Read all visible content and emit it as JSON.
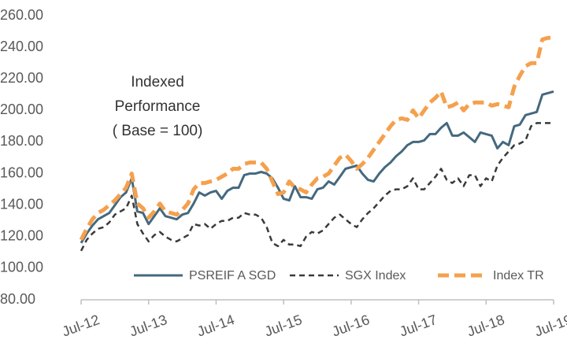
{
  "chart_data": {
    "type": "line",
    "annotation": [
      "Indexed",
      "Performance",
      "( Base = 100)"
    ],
    "categories": [
      "Jul-12",
      null,
      null,
      null,
      null,
      null,
      null,
      null,
      null,
      null,
      null,
      null,
      "Jul-13",
      null,
      null,
      null,
      null,
      null,
      null,
      null,
      null,
      null,
      null,
      null,
      "Jul-14",
      null,
      null,
      null,
      null,
      null,
      null,
      null,
      null,
      null,
      null,
      null,
      "Jul-15",
      null,
      null,
      null,
      null,
      null,
      null,
      null,
      null,
      null,
      null,
      null,
      "Jul-16",
      null,
      null,
      null,
      null,
      null,
      null,
      null,
      null,
      null,
      null,
      null,
      "Jul-17",
      null,
      null,
      null,
      null,
      null,
      null,
      null,
      null,
      null,
      null,
      null,
      "Jul-18",
      null,
      null,
      null,
      null,
      null,
      null,
      null,
      null,
      null,
      null,
      null,
      "Jul-19"
    ],
    "series": [
      {
        "name": "PSREIF A SGD",
        "color": "#44697f",
        "dash": "solid",
        "values": [
          116,
          122,
          127,
          131,
          133,
          135,
          140,
          145,
          148,
          157,
          136,
          135,
          128,
          133,
          138,
          133,
          132,
          131,
          134,
          135,
          141,
          148,
          146,
          148,
          149,
          144,
          149,
          151,
          151,
          159,
          160,
          160,
          161,
          160,
          157,
          151,
          144,
          143,
          152,
          145,
          145,
          144,
          150,
          151,
          155,
          153,
          158,
          163,
          164,
          165,
          160,
          156,
          155,
          160,
          164,
          167,
          171,
          174,
          178,
          180,
          180,
          181,
          185,
          185,
          189,
          192,
          184,
          184,
          186,
          183,
          180,
          186,
          185,
          184,
          176,
          180,
          178,
          190,
          191,
          197,
          198,
          199,
          210,
          211,
          212
        ]
      },
      {
        "name": "SGX Index",
        "color": "#3a3a3a",
        "dash": "dashed",
        "values": [
          111,
          118,
          122,
          125,
          126,
          129,
          134,
          136,
          138,
          146,
          128,
          122,
          117,
          121,
          123,
          120,
          118,
          117,
          119,
          121,
          128,
          127,
          128,
          125,
          128,
          130,
          130,
          132,
          132,
          135,
          134,
          134,
          132,
          126,
          116,
          114,
          118,
          115,
          115,
          114,
          120,
          123,
          122,
          124,
          128,
          132,
          134,
          131,
          128,
          126,
          131,
          135,
          138,
          142,
          146,
          149,
          150,
          150,
          152,
          157,
          150,
          150,
          154,
          158,
          163,
          156,
          154,
          157,
          152,
          159,
          159,
          152,
          157,
          155,
          165,
          170,
          174,
          178,
          179,
          181,
          190,
          192,
          192,
          192,
          192
        ]
      },
      {
        "name": "Index TR",
        "color": "#f5a04d",
        "dash": "dashed",
        "values": [
          118,
          125,
          131,
          135,
          137,
          140,
          143,
          147,
          151,
          160,
          141,
          138,
          132,
          136,
          141,
          136,
          135,
          134,
          137,
          141,
          150,
          154,
          154,
          155,
          156,
          158,
          160,
          163,
          163,
          166,
          167,
          167,
          167,
          163,
          155,
          147,
          148,
          155,
          151,
          150,
          148,
          153,
          157,
          158,
          160,
          165,
          170,
          172,
          168,
          163,
          166,
          170,
          175,
          180,
          185,
          190,
          194,
          195,
          194,
          200,
          195,
          200,
          205,
          208,
          212,
          202,
          203,
          205,
          200,
          204,
          205,
          205,
          205,
          203,
          204,
          203,
          202,
          215,
          222,
          228,
          230,
          230,
          245,
          246,
          246
        ]
      }
    ],
    "ylim": [
      80,
      260
    ],
    "yticks": [
      {
        "value": 80,
        "label": "80.00"
      },
      {
        "value": 100,
        "label": "100.00"
      },
      {
        "value": 120,
        "label": "120.00"
      },
      {
        "value": 140,
        "label": "140.00"
      },
      {
        "value": 160,
        "label": "160.00"
      },
      {
        "value": 180,
        "label": "180.00"
      },
      {
        "value": 200,
        "label": "200.00"
      },
      {
        "value": 220,
        "label": "220.00"
      },
      {
        "value": 240,
        "label": "240.00"
      },
      {
        "value": 260,
        "label": "260.00"
      }
    ],
    "grid": false
  }
}
